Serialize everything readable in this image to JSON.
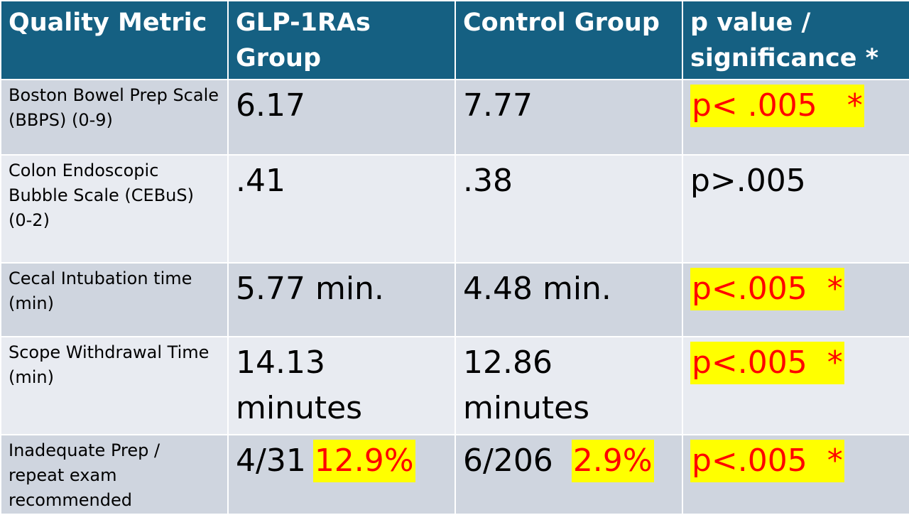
{
  "header": {
    "col1": "Quality Metric",
    "col2": "GLP-1RAs Group",
    "col3": "Control Group",
    "col4": "p value / significance *"
  },
  "rows": [
    {
      "metric": "Boston Bowel Prep Scale (BBPS) (0-9)",
      "glp": "6.17",
      "control": "7.77",
      "p": "p< .005   *",
      "p_highlighted": true
    },
    {
      "metric": "Colon Endoscopic Bubble Scale (CEBuS) (0-2)",
      "glp": ".41",
      "control": ".38",
      "p": "p>.005",
      "p_highlighted": false
    },
    {
      "metric": "Cecal Intubation time (min)",
      "glp": "5.77 min.",
      "control": "4.48 min.",
      "p": "p<.005  *",
      "p_highlighted": true
    },
    {
      "metric": "Scope Withdrawal Time (min)",
      "glp": "14.13 minutes",
      "control": "12.86 minutes",
      "p": "p<.005  *",
      "p_highlighted": true
    },
    {
      "metric": "Inadequate Prep / repeat exam recommended",
      "glp": "4/31",
      "glp_pct": "12.9%",
      "control": "6/206",
      "control_pct": "2.9%",
      "p": "p<.005  *",
      "p_highlighted": true
    }
  ],
  "colors": {
    "header_bg": "#156082",
    "row_odd_bg": "#cfd5df",
    "row_even_bg": "#e8ebf1",
    "highlight_bg": "#ffff00",
    "highlight_text": "#ff0000"
  }
}
